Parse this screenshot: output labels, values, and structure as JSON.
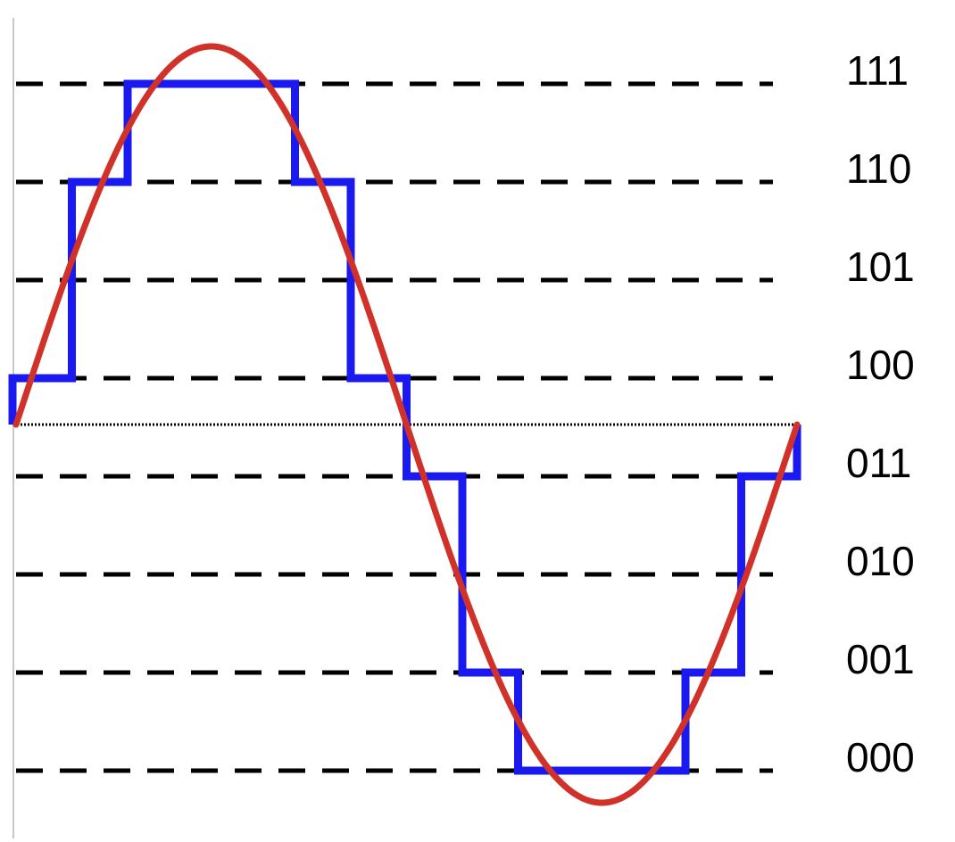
{
  "diagram": {
    "levels": [
      "000",
      "001",
      "010",
      "011",
      "100",
      "101",
      "110",
      "111"
    ],
    "colors": {
      "staircase": "#1a1af0",
      "sine": "#d0322a",
      "grid": "#000000",
      "axis": "#000000",
      "left_border": "#c8c8c8"
    },
    "samples_per_period": 14
  }
}
